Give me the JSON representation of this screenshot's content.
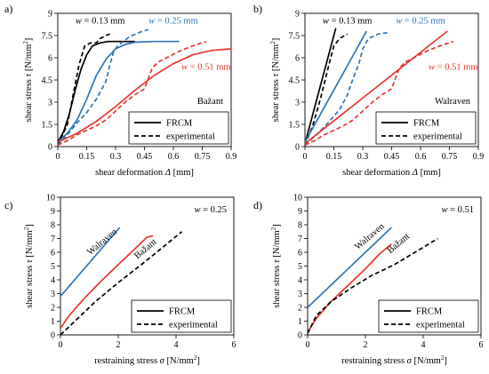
{
  "colors": {
    "black": "#000000",
    "blue": "#2E75B6",
    "red": "#E8352E"
  },
  "chart_data": [
    {
      "panel": "a)",
      "type": "line",
      "xlabel": "shear deformation Δ [mm]",
      "ylabel": "shear stress τ [N/mm²]",
      "xlim": [
        0,
        0.9
      ],
      "ylim": [
        0,
        9
      ],
      "xticks": [
        "0",
        "0.15",
        "0.3",
        "0.45",
        "0.6",
        "0.75",
        "0.9"
      ],
      "yticks": [
        "0",
        "1.5",
        "3",
        "4.5",
        "6",
        "7.5",
        "9"
      ],
      "model_label": "Bažant",
      "legend": [
        "FRCM",
        "experimental"
      ],
      "legend_position": "bottom-right",
      "grid": false,
      "annotations": [
        {
          "text": "w = 0.13 mm",
          "color": "black",
          "x": 0.22,
          "y": 8.3
        },
        {
          "text": "w = 0.25 mm",
          "color": "blue",
          "x": 0.6,
          "y": 8.3
        },
        {
          "text": "w = 0.51 mm",
          "color": "red",
          "x": 0.77,
          "y": 5.2
        }
      ],
      "series": [
        {
          "color": "black",
          "style": "solid",
          "x": [
            0,
            0.03,
            0.06,
            0.09,
            0.12,
            0.15,
            0.18,
            0.22,
            0.26,
            0.3,
            0.35,
            0.4
          ],
          "y": [
            0.3,
            1.0,
            2.2,
            3.8,
            5.2,
            6.2,
            6.8,
            7.0,
            7.1,
            7.1,
            7.1,
            7.1
          ]
        },
        {
          "color": "black",
          "style": "dashed",
          "x": [
            0,
            0.05,
            0.08,
            0.11,
            0.14,
            0.17,
            0.2,
            0.22,
            0.25,
            0.27
          ],
          "y": [
            0.1,
            1.5,
            3.5,
            5.5,
            6.8,
            7.0,
            7.0,
            7.3,
            7.5,
            7.6
          ]
        },
        {
          "color": "blue",
          "style": "solid",
          "x": [
            0,
            0.05,
            0.1,
            0.15,
            0.2,
            0.25,
            0.3,
            0.35,
            0.4,
            0.5,
            0.63
          ],
          "y": [
            0.3,
            0.9,
            1.8,
            3.2,
            4.8,
            5.9,
            6.6,
            6.9,
            7.05,
            7.1,
            7.1
          ]
        },
        {
          "color": "blue",
          "style": "dashed",
          "x": [
            0,
            0.05,
            0.1,
            0.15,
            0.2,
            0.25,
            0.27,
            0.29,
            0.31,
            0.34,
            0.37,
            0.42,
            0.47
          ],
          "y": [
            0.1,
            0.8,
            1.6,
            2.3,
            3.2,
            4.4,
            5.5,
            6.4,
            6.8,
            7.1,
            7.4,
            7.7,
            7.9
          ]
        },
        {
          "color": "red",
          "style": "solid",
          "x": [
            0,
            0.1,
            0.2,
            0.3,
            0.4,
            0.5,
            0.6,
            0.7,
            0.8,
            0.9
          ],
          "y": [
            0.3,
            0.9,
            1.7,
            2.7,
            3.8,
            4.8,
            5.6,
            6.2,
            6.5,
            6.6
          ]
        },
        {
          "color": "red",
          "style": "dashed",
          "x": [
            0,
            0.05,
            0.1,
            0.15,
            0.2,
            0.25,
            0.3,
            0.35,
            0.4,
            0.45,
            0.47,
            0.49,
            0.52,
            0.58,
            0.64,
            0.7,
            0.77
          ],
          "y": [
            0.1,
            0.4,
            0.8,
            1.1,
            1.4,
            1.8,
            2.4,
            3.0,
            3.5,
            3.9,
            4.6,
            5.3,
            5.7,
            6.1,
            6.5,
            6.8,
            7.1
          ]
        }
      ]
    },
    {
      "panel": "b)",
      "type": "line",
      "xlabel": "shear deformation Δ [mm]",
      "ylabel": "shear stress τ [N/mm²]",
      "xlim": [
        0,
        0.9
      ],
      "ylim": [
        0,
        9
      ],
      "xticks": [
        "0",
        "0.15",
        "0.3",
        "0.45",
        "0.6",
        "0.75",
        "0.9"
      ],
      "yticks": [
        "0",
        "1.5",
        "3",
        "4.5",
        "6",
        "7.5",
        "9"
      ],
      "model_label": "Walraven",
      "legend": [
        "FRCM",
        "experimental"
      ],
      "legend_position": "bottom-right",
      "grid": false,
      "annotations": [
        {
          "text": "w = 0.13 mm",
          "color": "black",
          "x": 0.22,
          "y": 8.3
        },
        {
          "text": "w = 0.25 mm",
          "color": "blue",
          "x": 0.6,
          "y": 8.3
        },
        {
          "text": "w = 0.51 mm",
          "color": "red",
          "x": 0.77,
          "y": 5.2
        }
      ],
      "series": [
        {
          "color": "black",
          "style": "solid",
          "x": [
            0,
            0.16
          ],
          "y": [
            0.2,
            8.0
          ]
        },
        {
          "color": "black",
          "style": "dashed",
          "x": [
            0,
            0.04,
            0.08,
            0.12,
            0.15,
            0.18,
            0.22
          ],
          "y": [
            0.1,
            1.4,
            3.2,
            5.3,
            6.8,
            7.3,
            7.6
          ]
        },
        {
          "color": "blue",
          "style": "solid",
          "x": [
            0,
            0.32
          ],
          "y": [
            0.3,
            7.8
          ]
        },
        {
          "color": "blue",
          "style": "dashed",
          "x": [
            0,
            0.06,
            0.12,
            0.18,
            0.22,
            0.25,
            0.28,
            0.3,
            0.33,
            0.38,
            0.43
          ],
          "y": [
            0.1,
            0.8,
            1.6,
            2.5,
            3.5,
            4.6,
            5.6,
            6.6,
            7.3,
            7.6,
            7.7
          ]
        },
        {
          "color": "red",
          "style": "solid",
          "x": [
            0,
            0.74
          ],
          "y": [
            0.2,
            7.8
          ]
        },
        {
          "color": "red",
          "style": "dashed",
          "x": [
            0,
            0.05,
            0.1,
            0.15,
            0.2,
            0.25,
            0.3,
            0.35,
            0.4,
            0.45,
            0.47,
            0.49,
            0.52,
            0.58,
            0.64,
            0.7,
            0.77
          ],
          "y": [
            0.1,
            0.4,
            0.8,
            1.1,
            1.4,
            1.8,
            2.4,
            3.0,
            3.5,
            3.9,
            4.6,
            5.3,
            5.7,
            6.1,
            6.5,
            6.8,
            7.1
          ]
        }
      ]
    },
    {
      "panel": "c)",
      "type": "line",
      "xlabel": "restraining stress σ [N/mm²]",
      "ylabel": "shear stress τ [N/mm²]",
      "xlim": [
        0,
        6
      ],
      "ylim": [
        0,
        10
      ],
      "xticks": [
        "0",
        "2",
        "4",
        "6"
      ],
      "yticks": [
        "0",
        "1",
        "2",
        "3",
        "4",
        "5",
        "6",
        "7",
        "8",
        "9",
        "10"
      ],
      "corner_label": "w = 0.25",
      "legend": [
        "FRCM",
        "experimental"
      ],
      "legend_position": "bottom-right",
      "grid": false,
      "annotations": [
        {
          "text": "Walraven",
          "color": "black",
          "x": 1.5,
          "y": 6.6,
          "angle": -40
        },
        {
          "text": "Bažant",
          "color": "black",
          "x": 3.0,
          "y": 6.1,
          "angle": -40
        }
      ],
      "series": [
        {
          "color": "blue",
          "style": "solid",
          "x": [
            0,
            2.05
          ],
          "y": [
            2.8,
            7.8
          ]
        },
        {
          "color": "red",
          "style": "solid",
          "x": [
            0,
            0.3,
            0.8,
            1.4,
            2.0,
            2.6,
            3.0,
            3.2
          ],
          "y": [
            0.5,
            1.4,
            2.6,
            3.9,
            5.1,
            6.3,
            7.1,
            7.2
          ]
        },
        {
          "color": "black",
          "style": "dashed",
          "x": [
            0,
            0.6,
            1.2,
            2.0,
            2.8,
            3.5,
            4.2
          ],
          "y": [
            0,
            1.2,
            2.4,
            3.8,
            5.1,
            6.3,
            7.5
          ]
        }
      ]
    },
    {
      "panel": "d)",
      "type": "line",
      "xlabel": "restraining stress σ [N/mm²]",
      "ylabel": "shear stress τ [N/mm²]",
      "xlim": [
        0,
        6
      ],
      "ylim": [
        0,
        10
      ],
      "xticks": [
        "0",
        "2",
        "4",
        "6"
      ],
      "yticks": [
        "0",
        "1",
        "2",
        "3",
        "4",
        "5",
        "6",
        "7",
        "8",
        "9",
        "10"
      ],
      "corner_label": "w = 0.51",
      "legend": [
        "FRCM",
        "experimental"
      ],
      "legend_position": "bottom-right",
      "grid": false,
      "annotations": [
        {
          "text": "Walraven",
          "color": "black",
          "x": 2.2,
          "y": 7.0,
          "angle": -40
        },
        {
          "text": "Bažant",
          "color": "black",
          "x": 3.2,
          "y": 6.5,
          "angle": -40
        }
      ],
      "series": [
        {
          "color": "blue",
          "style": "solid",
          "x": [
            0,
            2.9
          ],
          "y": [
            2.0,
            7.8
          ]
        },
        {
          "color": "red",
          "style": "solid",
          "x": [
            0,
            0.3,
            0.8,
            1.4,
            2.0,
            2.5,
            2.9
          ],
          "y": [
            0.2,
            1.2,
            2.4,
            3.6,
            4.8,
            5.9,
            6.6
          ]
        },
        {
          "color": "black",
          "style": "dashed",
          "x": [
            0,
            0.3,
            0.8,
            1.5,
            2.2,
            3.0,
            3.8,
            4.5
          ],
          "y": [
            0.1,
            1.4,
            2.4,
            3.4,
            4.3,
            5.1,
            6.1,
            7.0
          ]
        }
      ]
    }
  ]
}
